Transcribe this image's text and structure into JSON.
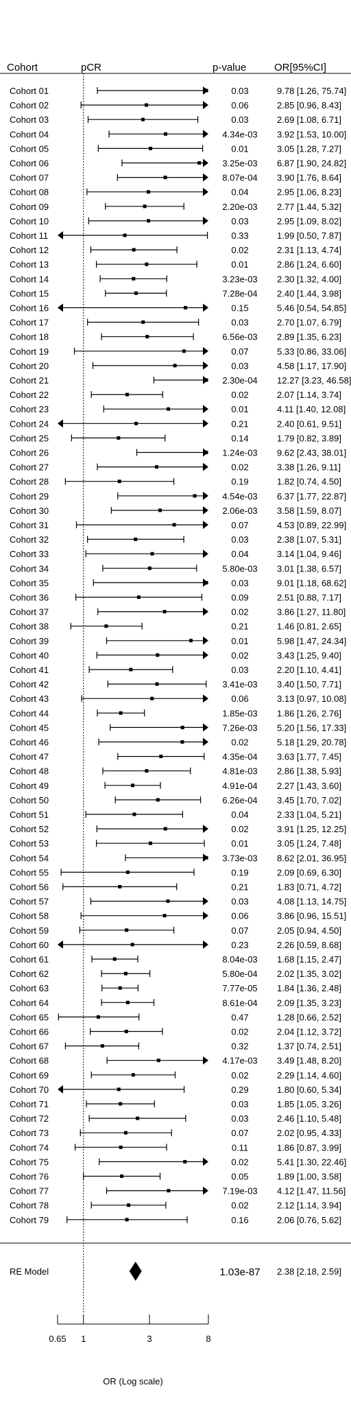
{
  "header": {
    "cohort_label": "Cohort",
    "pcr_label": "pCR",
    "pvalue_label": "p-value",
    "or_label": "OR[95%CI]"
  },
  "chart_data": {
    "type": "forest",
    "title": "",
    "xlabel": "OR (Log scale)",
    "x_scale": "log",
    "xlim": [
      0.65,
      8
    ],
    "x_ticks": [
      0.65,
      1,
      3,
      8
    ],
    "x_tick_labels": [
      "0.65",
      "1",
      "3",
      "8"
    ],
    "reference_line": 1,
    "studies": [
      {
        "name": "Cohort 01",
        "or": 9.78,
        "lo": 1.26,
        "hi": 75.74,
        "p": "0.03",
        "ci_text": "9.78 [1.26, 75.74]"
      },
      {
        "name": "Cohort 02",
        "or": 2.85,
        "lo": 0.96,
        "hi": 8.43,
        "p": "0.06",
        "ci_text": "2.85 [0.96, 8.43]"
      },
      {
        "name": "Cohort 03",
        "or": 2.69,
        "lo": 1.08,
        "hi": 6.71,
        "p": "0.03",
        "ci_text": "2.69 [1.08, 6.71]"
      },
      {
        "name": "Cohort 04",
        "or": 3.92,
        "lo": 1.53,
        "hi": 10.0,
        "p": "4.34e-03",
        "ci_text": "3.92 [1.53, 10.00]"
      },
      {
        "name": "Cohort 05",
        "or": 3.05,
        "lo": 1.28,
        "hi": 7.27,
        "p": "0.01",
        "ci_text": "3.05 [1.28, 7.27]"
      },
      {
        "name": "Cohort 06",
        "or": 6.87,
        "lo": 1.9,
        "hi": 24.82,
        "p": "3.25e-03",
        "ci_text": "6.87 [1.90, 24.82]"
      },
      {
        "name": "Cohort 07",
        "or": 3.9,
        "lo": 1.76,
        "hi": 8.64,
        "p": "8.07e-04",
        "ci_text": "3.90 [1.76, 8.64]"
      },
      {
        "name": "Cohort 08",
        "or": 2.95,
        "lo": 1.06,
        "hi": 8.23,
        "p": "0.04",
        "ci_text": "2.95 [1.06, 8.23]"
      },
      {
        "name": "Cohort 09",
        "or": 2.77,
        "lo": 1.44,
        "hi": 5.32,
        "p": "2.20e-03",
        "ci_text": "2.77 [1.44, 5.32]"
      },
      {
        "name": "Cohort 10",
        "or": 2.95,
        "lo": 1.09,
        "hi": 8.02,
        "p": "0.03",
        "ci_text": "2.95 [1.09, 8.02]"
      },
      {
        "name": "Cohort 11",
        "or": 1.99,
        "lo": 0.5,
        "hi": 7.87,
        "p": "0.33",
        "ci_text": "1.99 [0.50, 7.87]"
      },
      {
        "name": "Cohort 12",
        "or": 2.31,
        "lo": 1.13,
        "hi": 4.74,
        "p": "0.02",
        "ci_text": "2.31 [1.13, 4.74]"
      },
      {
        "name": "Cohort 13",
        "or": 2.86,
        "lo": 1.24,
        "hi": 6.6,
        "p": "0.01",
        "ci_text": "2.86 [1.24, 6.60]"
      },
      {
        "name": "Cohort 14",
        "or": 2.3,
        "lo": 1.32,
        "hi": 4.0,
        "p": "3.23e-03",
        "ci_text": "2.30 [1.32, 4.00]"
      },
      {
        "name": "Cohort 15",
        "or": 2.4,
        "lo": 1.44,
        "hi": 3.98,
        "p": "7.28e-04",
        "ci_text": "2.40 [1.44, 3.98]"
      },
      {
        "name": "Cohort 16",
        "or": 5.46,
        "lo": 0.54,
        "hi": 54.85,
        "p": "0.15",
        "ci_text": "5.46 [0.54, 54.85]"
      },
      {
        "name": "Cohort 17",
        "or": 2.7,
        "lo": 1.07,
        "hi": 6.79,
        "p": "0.03",
        "ci_text": "2.70 [1.07, 6.79]"
      },
      {
        "name": "Cohort 18",
        "or": 2.89,
        "lo": 1.35,
        "hi": 6.23,
        "p": "6.56e-03",
        "ci_text": "2.89 [1.35, 6.23]"
      },
      {
        "name": "Cohort 19",
        "or": 5.33,
        "lo": 0.86,
        "hi": 33.06,
        "p": "0.07",
        "ci_text": "5.33 [0.86, 33.06]"
      },
      {
        "name": "Cohort 20",
        "or": 4.58,
        "lo": 1.17,
        "hi": 17.9,
        "p": "0.03",
        "ci_text": "4.58 [1.17, 17.90]"
      },
      {
        "name": "Cohort 21",
        "or": 12.27,
        "lo": 3.23,
        "hi": 46.58,
        "p": "2.30e-04",
        "ci_text": "12.27 [3.23, 46.58]"
      },
      {
        "name": "Cohort 22",
        "or": 2.07,
        "lo": 1.14,
        "hi": 3.74,
        "p": "0.02",
        "ci_text": "2.07 [1.14, 3.74]"
      },
      {
        "name": "Cohort 23",
        "or": 4.11,
        "lo": 1.4,
        "hi": 12.08,
        "p": "0.01",
        "ci_text": "4.11 [1.40, 12.08]"
      },
      {
        "name": "Cohort 24",
        "or": 2.4,
        "lo": 0.61,
        "hi": 9.51,
        "p": "0.21",
        "ci_text": "2.40 [0.61, 9.51]"
      },
      {
        "name": "Cohort 25",
        "or": 1.79,
        "lo": 0.82,
        "hi": 3.89,
        "p": "0.14",
        "ci_text": "1.79 [0.82, 3.89]"
      },
      {
        "name": "Cohort 26",
        "or": 9.62,
        "lo": 2.43,
        "hi": 38.01,
        "p": "1.24e-03",
        "ci_text": "9.62 [2.43, 38.01]"
      },
      {
        "name": "Cohort 27",
        "or": 3.38,
        "lo": 1.26,
        "hi": 9.11,
        "p": "0.02",
        "ci_text": "3.38 [1.26, 9.11]"
      },
      {
        "name": "Cohort 28",
        "or": 1.82,
        "lo": 0.74,
        "hi": 4.5,
        "p": "0.19",
        "ci_text": "1.82 [0.74, 4.50]"
      },
      {
        "name": "Cohort 29",
        "or": 6.37,
        "lo": 1.77,
        "hi": 22.87,
        "p": "4.54e-03",
        "ci_text": "6.37 [1.77, 22.87]"
      },
      {
        "name": "Cohort 30",
        "or": 3.58,
        "lo": 1.59,
        "hi": 8.07,
        "p": "2.06e-03",
        "ci_text": "3.58 [1.59, 8.07]"
      },
      {
        "name": "Cohort 31",
        "or": 4.53,
        "lo": 0.89,
        "hi": 22.99,
        "p": "0.07",
        "ci_text": "4.53 [0.89, 22.99]"
      },
      {
        "name": "Cohort 32",
        "or": 2.38,
        "lo": 1.07,
        "hi": 5.31,
        "p": "0.03",
        "ci_text": "2.38 [1.07, 5.31]"
      },
      {
        "name": "Cohort 33",
        "or": 3.14,
        "lo": 1.04,
        "hi": 9.46,
        "p": "0.04",
        "ci_text": "3.14 [1.04, 9.46]"
      },
      {
        "name": "Cohort 34",
        "or": 3.01,
        "lo": 1.38,
        "hi": 6.57,
        "p": "5.80e-03",
        "ci_text": "3.01 [1.38, 6.57]"
      },
      {
        "name": "Cohort 35",
        "or": 9.01,
        "lo": 1.18,
        "hi": 68.62,
        "p": "0.03",
        "ci_text": "9.01 [1.18, 68.62]"
      },
      {
        "name": "Cohort 36",
        "or": 2.51,
        "lo": 0.88,
        "hi": 7.17,
        "p": "0.09",
        "ci_text": "2.51 [0.88, 7.17]"
      },
      {
        "name": "Cohort 37",
        "or": 3.86,
        "lo": 1.27,
        "hi": 11.8,
        "p": "0.02",
        "ci_text": "3.86 [1.27, 11.80]"
      },
      {
        "name": "Cohort 38",
        "or": 1.46,
        "lo": 0.81,
        "hi": 2.65,
        "p": "0.21",
        "ci_text": "1.46 [0.81, 2.65]"
      },
      {
        "name": "Cohort 39",
        "or": 5.98,
        "lo": 1.47,
        "hi": 24.34,
        "p": "0.01",
        "ci_text": "5.98 [1.47, 24.34]"
      },
      {
        "name": "Cohort 40",
        "or": 3.43,
        "lo": 1.25,
        "hi": 9.4,
        "p": "0.02",
        "ci_text": "3.43 [1.25, 9.40]"
      },
      {
        "name": "Cohort 41",
        "or": 2.2,
        "lo": 1.1,
        "hi": 4.41,
        "p": "0.03",
        "ci_text": "2.20 [1.10, 4.41]"
      },
      {
        "name": "Cohort 42",
        "or": 3.4,
        "lo": 1.5,
        "hi": 7.71,
        "p": "3.41e-03",
        "ci_text": "3.40 [1.50, 7.71]"
      },
      {
        "name": "Cohort 43",
        "or": 3.13,
        "lo": 0.97,
        "hi": 10.08,
        "p": "0.06",
        "ci_text": "3.13 [0.97, 10.08]"
      },
      {
        "name": "Cohort 44",
        "or": 1.86,
        "lo": 1.26,
        "hi": 2.76,
        "p": "1.85e-03",
        "ci_text": "1.86 [1.26, 2.76]"
      },
      {
        "name": "Cohort 45",
        "or": 5.2,
        "lo": 1.56,
        "hi": 17.33,
        "p": "7.26e-03",
        "ci_text": "5.20 [1.56, 17.33]"
      },
      {
        "name": "Cohort 46",
        "or": 5.18,
        "lo": 1.29,
        "hi": 20.78,
        "p": "0.02",
        "ci_text": "5.18 [1.29, 20.78]"
      },
      {
        "name": "Cohort 47",
        "or": 3.63,
        "lo": 1.77,
        "hi": 7.45,
        "p": "4.35e-04",
        "ci_text": "3.63 [1.77, 7.45]"
      },
      {
        "name": "Cohort 48",
        "or": 2.86,
        "lo": 1.38,
        "hi": 5.93,
        "p": "4.81e-03",
        "ci_text": "2.86 [1.38, 5.93]"
      },
      {
        "name": "Cohort 49",
        "or": 2.27,
        "lo": 1.43,
        "hi": 3.6,
        "p": "4.91e-04",
        "ci_text": "2.27 [1.43, 3.60]"
      },
      {
        "name": "Cohort 50",
        "or": 3.45,
        "lo": 1.7,
        "hi": 7.02,
        "p": "6.26e-04",
        "ci_text": "3.45 [1.70, 7.02]"
      },
      {
        "name": "Cohort 51",
        "or": 2.33,
        "lo": 1.04,
        "hi": 5.21,
        "p": "0.04",
        "ci_text": "2.33 [1.04, 5.21]"
      },
      {
        "name": "Cohort 52",
        "or": 3.91,
        "lo": 1.25,
        "hi": 12.25,
        "p": "0.02",
        "ci_text": "3.91 [1.25, 12.25]"
      },
      {
        "name": "Cohort 53",
        "or": 3.05,
        "lo": 1.24,
        "hi": 7.48,
        "p": "0.01",
        "ci_text": "3.05 [1.24, 7.48]"
      },
      {
        "name": "Cohort 54",
        "or": 8.62,
        "lo": 2.01,
        "hi": 36.95,
        "p": "3.73e-03",
        "ci_text": "8.62 [2.01, 36.95]"
      },
      {
        "name": "Cohort 55",
        "or": 2.09,
        "lo": 0.69,
        "hi": 6.3,
        "p": "0.19",
        "ci_text": "2.09 [0.69, 6.30]"
      },
      {
        "name": "Cohort 56",
        "or": 1.83,
        "lo": 0.71,
        "hi": 4.72,
        "p": "0.21",
        "ci_text": "1.83 [0.71, 4.72]"
      },
      {
        "name": "Cohort 57",
        "or": 4.08,
        "lo": 1.13,
        "hi": 14.75,
        "p": "0.03",
        "ci_text": "4.08 [1.13, 14.75]"
      },
      {
        "name": "Cohort 58",
        "or": 3.86,
        "lo": 0.96,
        "hi": 15.51,
        "p": "0.06",
        "ci_text": "3.86 [0.96, 15.51]"
      },
      {
        "name": "Cohort 59",
        "or": 2.05,
        "lo": 0.94,
        "hi": 4.5,
        "p": "0.07",
        "ci_text": "2.05 [0.94, 4.50]"
      },
      {
        "name": "Cohort 60",
        "or": 2.26,
        "lo": 0.59,
        "hi": 8.68,
        "p": "0.23",
        "ci_text": "2.26 [0.59, 8.68]"
      },
      {
        "name": "Cohort 61",
        "or": 1.68,
        "lo": 1.15,
        "hi": 2.47,
        "p": "8.04e-03",
        "ci_text": "1.68 [1.15, 2.47]"
      },
      {
        "name": "Cohort 62",
        "or": 2.02,
        "lo": 1.35,
        "hi": 3.02,
        "p": "5.80e-04",
        "ci_text": "2.02 [1.35, 3.02]"
      },
      {
        "name": "Cohort 63",
        "or": 1.84,
        "lo": 1.36,
        "hi": 2.48,
        "p": "7.77e-05",
        "ci_text": "1.84 [1.36, 2.48]"
      },
      {
        "name": "Cohort 64",
        "or": 2.09,
        "lo": 1.35,
        "hi": 3.23,
        "p": "8.61e-04",
        "ci_text": "2.09 [1.35, 3.23]"
      },
      {
        "name": "Cohort 65",
        "or": 1.28,
        "lo": 0.66,
        "hi": 2.52,
        "p": "0.47",
        "ci_text": "1.28 [0.66, 2.52]"
      },
      {
        "name": "Cohort 66",
        "or": 2.04,
        "lo": 1.12,
        "hi": 3.72,
        "p": "0.02",
        "ci_text": "2.04 [1.12, 3.72]"
      },
      {
        "name": "Cohort 67",
        "or": 1.37,
        "lo": 0.74,
        "hi": 2.51,
        "p": "0.32",
        "ci_text": "1.37 [0.74, 2.51]"
      },
      {
        "name": "Cohort 68",
        "or": 3.49,
        "lo": 1.48,
        "hi": 8.2,
        "p": "4.17e-03",
        "ci_text": "3.49 [1.48, 8.20]"
      },
      {
        "name": "Cohort 69",
        "or": 2.29,
        "lo": 1.14,
        "hi": 4.6,
        "p": "0.02",
        "ci_text": "2.29 [1.14, 4.60]"
      },
      {
        "name": "Cohort 70",
        "or": 1.8,
        "lo": 0.6,
        "hi": 5.34,
        "p": "0.29",
        "ci_text": "1.80 [0.60, 5.34]"
      },
      {
        "name": "Cohort 71",
        "or": 1.85,
        "lo": 1.05,
        "hi": 3.26,
        "p": "0.03",
        "ci_text": "1.85 [1.05, 3.26]"
      },
      {
        "name": "Cohort 72",
        "or": 2.46,
        "lo": 1.1,
        "hi": 5.48,
        "p": "0.03",
        "ci_text": "2.46 [1.10, 5.48]"
      },
      {
        "name": "Cohort 73",
        "or": 2.02,
        "lo": 0.95,
        "hi": 4.33,
        "p": "0.07",
        "ci_text": "2.02 [0.95, 4.33]"
      },
      {
        "name": "Cohort 74",
        "or": 1.86,
        "lo": 0.87,
        "hi": 3.99,
        "p": "0.11",
        "ci_text": "1.86 [0.87, 3.99]"
      },
      {
        "name": "Cohort 75",
        "or": 5.41,
        "lo": 1.3,
        "hi": 22.46,
        "p": "0.02",
        "ci_text": "5.41 [1.30, 22.46]"
      },
      {
        "name": "Cohort 76",
        "or": 1.89,
        "lo": 1.0,
        "hi": 3.58,
        "p": "0.05",
        "ci_text": "1.89 [1.00, 3.58]"
      },
      {
        "name": "Cohort 77",
        "or": 4.12,
        "lo": 1.47,
        "hi": 11.56,
        "p": "7.19e-03",
        "ci_text": "4.12 [1.47, 11.56]"
      },
      {
        "name": "Cohort 78",
        "or": 2.12,
        "lo": 1.14,
        "hi": 3.94,
        "p": "0.02",
        "ci_text": "2.12 [1.14, 3.94]"
      },
      {
        "name": "Cohort 79",
        "or": 2.06,
        "lo": 0.76,
        "hi": 5.62,
        "p": "0.16",
        "ci_text": "2.06 [0.76, 5.62]"
      }
    ],
    "summary": {
      "name": "RE Model",
      "or": 2.38,
      "lo": 2.18,
      "hi": 2.59,
      "p": "1.03e-87",
      "ci_text": "2.38 [2.18, 2.59]"
    }
  }
}
